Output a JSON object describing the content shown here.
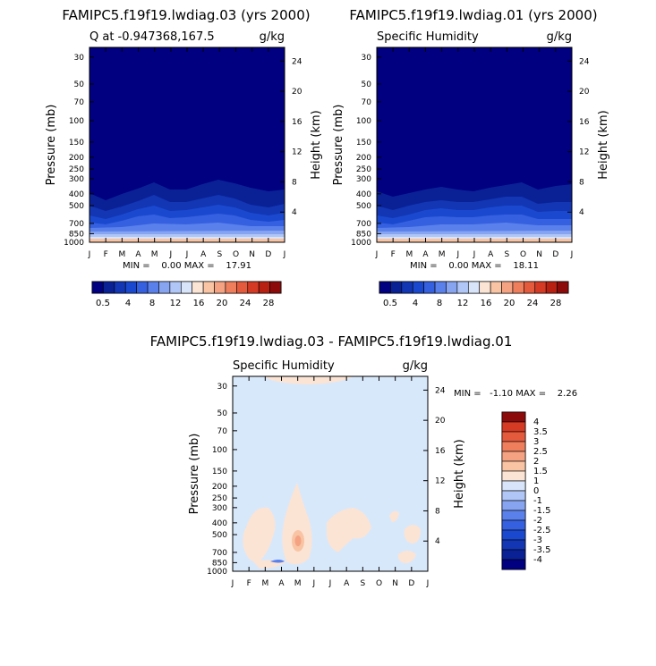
{
  "panels": [
    {
      "title": "FAMIPC5.f19f19.lwdiag.03 (yrs 2000)",
      "left_label": "Q at -0.947368,167.5",
      "right_label": "g/kg",
      "stats": "MIN =    0.00 MAX =    17.91"
    },
    {
      "title": "FAMIPC5.f19f19.lwdiag.01 (yrs 2000)",
      "left_label": "Specific Humidity",
      "right_label": "g/kg",
      "stats": "MIN =    0.00 MAX =    18.11"
    },
    {
      "title": "FAMIPC5.f19f19.lwdiag.03 - FAMIPC5.f19f19.lwdiag.01",
      "left_label": "Specific Humidity",
      "right_label": "g/kg",
      "stats": "MIN =   -1.10 MAX =    2.26"
    }
  ],
  "chart_data": [
    {
      "type": "heatmap",
      "title": "FAMIPC5.f19f19.lwdiag.03 (yrs 2000)",
      "subtitle_left": "Q at -0.947368,167.5",
      "units": "g/kg",
      "xlabel": "",
      "ylabel": "Pressure (mb)",
      "ylabel_right": "Height (km)",
      "x_ticks": [
        "J",
        "F",
        "M",
        "A",
        "M",
        "J",
        "J",
        "A",
        "S",
        "O",
        "N",
        "D",
        "J"
      ],
      "y_ticks_pressure": [
        30,
        50,
        70,
        100,
        150,
        200,
        250,
        300,
        400,
        500,
        700,
        850,
        1000
      ],
      "y_ticks_height": [
        24,
        20,
        16,
        12,
        8,
        4
      ],
      "y_scale": "log",
      "min": 0.0,
      "max": 17.91,
      "colorbar_labels": [
        "0.5",
        "4",
        "8",
        "12",
        "16",
        "20",
        "24",
        "28"
      ]
    },
    {
      "type": "heatmap",
      "title": "FAMIPC5.f19f19.lwdiag.01 (yrs 2000)",
      "subtitle_left": "Specific Humidity",
      "units": "g/kg",
      "ylabel": "Pressure (mb)",
      "ylabel_right": "Height (km)",
      "x_ticks": [
        "J",
        "F",
        "M",
        "A",
        "M",
        "J",
        "J",
        "A",
        "S",
        "O",
        "N",
        "D",
        "J"
      ],
      "y_ticks_pressure": [
        30,
        50,
        70,
        100,
        150,
        200,
        250,
        300,
        400,
        500,
        700,
        850,
        1000
      ],
      "y_ticks_height": [
        24,
        20,
        16,
        12,
        8,
        4
      ],
      "y_scale": "log",
      "min": 0.0,
      "max": 18.11,
      "colorbar_labels": [
        "0.5",
        "4",
        "8",
        "12",
        "16",
        "20",
        "24",
        "28"
      ]
    },
    {
      "type": "heatmap",
      "title": "FAMIPC5.f19f19.lwdiag.03 - FAMIPC5.f19f19.lwdiag.01",
      "subtitle_left": "Specific Humidity",
      "units": "g/kg",
      "ylabel": "Pressure (mb)",
      "ylabel_right": "Height (km)",
      "x_ticks": [
        "J",
        "F",
        "M",
        "A",
        "M",
        "J",
        "J",
        "A",
        "S",
        "O",
        "N",
        "D",
        "J"
      ],
      "y_ticks_pressure": [
        30,
        50,
        70,
        100,
        150,
        200,
        250,
        300,
        400,
        500,
        700,
        850,
        1000
      ],
      "y_ticks_height": [
        24,
        20,
        16,
        12,
        8,
        4
      ],
      "y_scale": "log",
      "min": -1.1,
      "max": 2.26,
      "colorbar_labels": [
        "4",
        "3.5",
        "3",
        "2.5",
        "2",
        "1.5",
        "1",
        "0",
        "-1",
        "-1.5",
        "-2",
        "-2.5",
        "-3",
        "-3.5",
        "-4"
      ]
    }
  ],
  "colors": {
    "abs_scale": [
      "#000080",
      "#0a2196",
      "#1236b4",
      "#1a49d0",
      "#3560e0",
      "#5a80ec",
      "#86a4f0",
      "#b0c6f6",
      "#d8e4fa",
      "#fbe4d4",
      "#f8c4a4",
      "#f4a282",
      "#ee7e5c",
      "#e45a3c",
      "#d43a24",
      "#b82012",
      "#8c0a0a"
    ],
    "diff_scale": [
      "#000080",
      "#0a2196",
      "#1236b4",
      "#1a49d0",
      "#3560e0",
      "#5a80ec",
      "#86a4f0",
      "#b0c6f6",
      "#d8e4fa",
      "#fbe4d4",
      "#f8c4a4",
      "#f4a282",
      "#ee7e5c",
      "#e45a3c",
      "#d43a24",
      "#8c0a0a"
    ]
  }
}
